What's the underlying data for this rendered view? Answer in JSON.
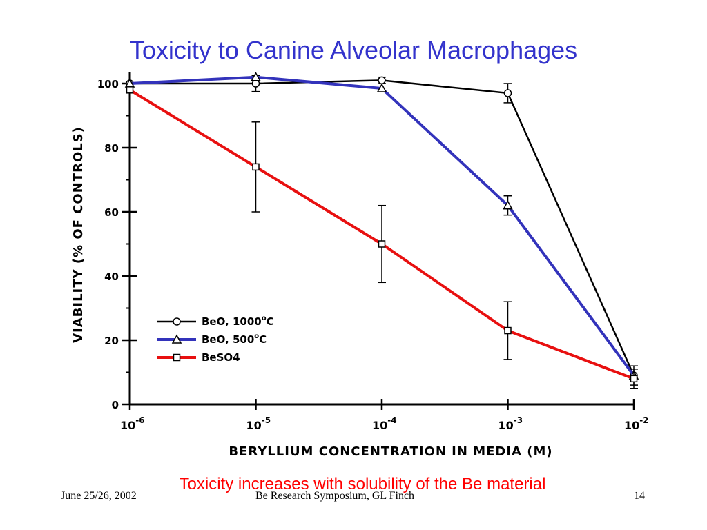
{
  "slide": {
    "title": "Toxicity to Canine Alveolar Macrophages",
    "caption": "Toxicity increases with solubility of the Be material",
    "footer_left": "June 25/26, 2002",
    "footer_center": "Be Research Symposium, GL Finch",
    "footer_right": "14"
  },
  "chart_data": {
    "type": "line",
    "xlabel": "BERYLLIUM CONCENTRATION IN MEDIA (M)",
    "ylabel": "VIABILITY (% OF CONTROLS)",
    "xscale": "log",
    "xlim": [
      1e-06,
      0.01
    ],
    "ylim": [
      0,
      100
    ],
    "x_ticks": [
      {
        "exp": -6,
        "base": "10",
        "label": "-6"
      },
      {
        "exp": -5,
        "base": "10",
        "label": "-5"
      },
      {
        "exp": -4,
        "base": "10",
        "label": "-4"
      },
      {
        "exp": -3,
        "base": "10",
        "label": "-3"
      },
      {
        "exp": -2,
        "base": "10",
        "label": "-2"
      }
    ],
    "y_ticks": [
      0,
      20,
      40,
      60,
      80,
      100
    ],
    "legend_position": "lower-left",
    "series": [
      {
        "name_main": "BeO, 1000",
        "name_sup": "o",
        "name_tail": "C",
        "color": "#000000",
        "marker": "circle",
        "points": [
          {
            "exp": -6,
            "y": 100
          },
          {
            "exp": -5,
            "y": 100,
            "err": 2.5
          },
          {
            "exp": -4,
            "y": 101,
            "err": 1
          },
          {
            "exp": -3,
            "y": 97,
            "err": 3
          },
          {
            "exp": -2,
            "y": 9,
            "err": 3
          }
        ]
      },
      {
        "name_main": "BeO, 500",
        "name_sup": "o",
        "name_tail": "C",
        "color": "#3333bb",
        "marker": "triangle",
        "points": [
          {
            "exp": -6,
            "y": 100
          },
          {
            "exp": -5,
            "y": 102
          },
          {
            "exp": -4,
            "y": 98.5
          },
          {
            "exp": -3,
            "y": 62,
            "err": 3
          },
          {
            "exp": -2,
            "y": 9
          }
        ]
      },
      {
        "name_main": "BeSO4",
        "name_sup": "",
        "name_tail": "",
        "color": "#e81010",
        "marker": "square",
        "points": [
          {
            "exp": -6,
            "y": 98
          },
          {
            "exp": -5,
            "y": 74,
            "err": 14
          },
          {
            "exp": -4,
            "y": 50,
            "err": 12
          },
          {
            "exp": -3,
            "y": 23,
            "err": 9
          },
          {
            "exp": -2,
            "y": 8,
            "err": 3
          }
        ]
      }
    ]
  }
}
